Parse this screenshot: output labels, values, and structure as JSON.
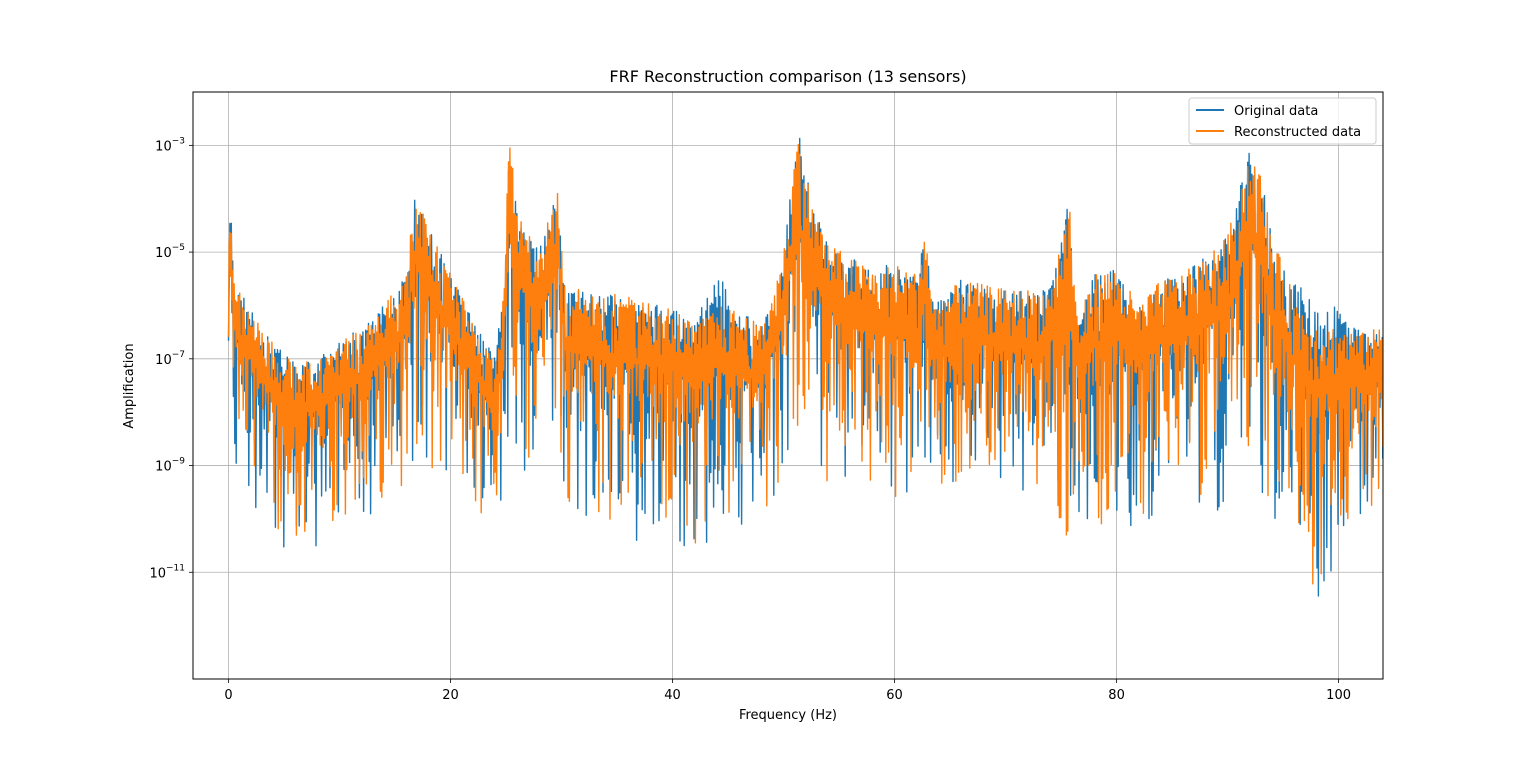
{
  "chart_data": {
    "type": "line",
    "title": "FRF Reconstruction comparison (13 sensors)",
    "xlabel": "Frequency (Hz)",
    "ylabel": "Amplification",
    "xlim": [
      -3.2,
      104
    ],
    "ylim": [
      1e-13,
      0.01
    ],
    "y_scale": "log",
    "grid": true,
    "legend_position": "top-right",
    "x_ticks": [
      0,
      20,
      40,
      60,
      80,
      100
    ],
    "x_tick_labels": [
      "0",
      "20",
      "40",
      "60",
      "80",
      "100"
    ],
    "y_ticks": [
      1e-11,
      1e-09,
      1e-07,
      1e-05,
      0.001
    ],
    "y_tick_labels": [
      {
        "base": "10",
        "exp": "−11"
      },
      {
        "base": "10",
        "exp": "−9"
      },
      {
        "base": "10",
        "exp": "−7"
      },
      {
        "base": "10",
        "exp": "−5"
      },
      {
        "base": "10",
        "exp": "−3"
      }
    ],
    "envelope_x": [
      0,
      0.5,
      2,
      4,
      6,
      8,
      10,
      12,
      14,
      16,
      16.8,
      18,
      20,
      22,
      24,
      24.8,
      25.3,
      26,
      28,
      29.7,
      30.3,
      32,
      36,
      40,
      42,
      44,
      46,
      48,
      50,
      51.3,
      52.5,
      54,
      56,
      58,
      60,
      62,
      62.8,
      63.5,
      66,
      70,
      74,
      75.8,
      76.5,
      78,
      80,
      82,
      84,
      86,
      88,
      90,
      92,
      93,
      94,
      96,
      98,
      100,
      102,
      104
    ],
    "series": [
      {
        "name": "Original data",
        "color": "#1f77b4",
        "upper": [
          0.0006,
          3e-06,
          8e-07,
          2e-07,
          8e-08,
          1e-07,
          2e-07,
          4e-07,
          1e-06,
          4e-06,
          0.00015,
          3e-05,
          4e-06,
          6e-07,
          1e-07,
          3e-06,
          0.0018,
          5e-05,
          1e-05,
          0.00045,
          2e-06,
          2e-06,
          1.5e-06,
          1e-06,
          5e-07,
          4e-06,
          1e-06,
          4e-07,
          1e-05,
          0.0022,
          0.0001,
          1.5e-05,
          8e-06,
          5e-06,
          6e-06,
          4e-06,
          3e-05,
          1e-06,
          3e-06,
          2e-06,
          2e-06,
          0.00012,
          5e-07,
          4e-06,
          5e-06,
          1e-06,
          3e-06,
          4e-06,
          8e-06,
          2e-05,
          0.0008,
          0.0003,
          2e-05,
          3e-06,
          1e-06,
          1.2e-06,
          3e-07,
          3e-07
        ],
        "lower": [
          1e-08,
          1e-09,
          2e-10,
          2e-11,
          3e-11,
          2e-11,
          8e-11,
          1e-10,
          1e-10,
          3e-10,
          2e-09,
          1e-09,
          5e-10,
          2e-10,
          3e-11,
          1e-10,
          5e-09,
          1e-09,
          5e-10,
          5e-10,
          2e-10,
          1e-10,
          2e-11,
          5e-11,
          2e-11,
          2e-11,
          5e-11,
          1e-10,
          2e-10,
          1e-09,
          1e-09,
          5e-10,
          5e-10,
          2e-10,
          1e-10,
          2e-10,
          5e-10,
          1e-10,
          5e-10,
          2e-10,
          5e-10,
          1e-10,
          5e-11,
          5e-11,
          1e-10,
          5e-11,
          2e-10,
          2e-10,
          2e-10,
          1e-10,
          5e-10,
          2e-10,
          5e-11,
          3e-11,
          3e-12,
          1e-11,
          5e-11,
          1e-10
        ]
      },
      {
        "name": "Reconstructed data",
        "color": "#ff7f0e",
        "upper": [
          0.0004,
          3e-06,
          8e-07,
          2e-07,
          8e-08,
          1e-07,
          2e-07,
          4e-07,
          1e-06,
          4e-06,
          0.00014,
          3e-05,
          4e-06,
          6e-07,
          1e-07,
          3e-06,
          0.0017,
          5e-05,
          1e-05,
          0.0002,
          2e-06,
          2e-06,
          1.5e-06,
          1e-06,
          4e-07,
          1e-06,
          8e-07,
          4e-07,
          1e-05,
          0.0021,
          0.0001,
          1.5e-05,
          8e-06,
          5e-06,
          6e-06,
          4e-06,
          3e-05,
          1e-06,
          3e-06,
          2e-06,
          2e-06,
          0.00011,
          5e-07,
          4e-06,
          5e-06,
          1e-06,
          3e-06,
          4e-06,
          8e-06,
          2e-05,
          0.0009,
          0.0003,
          2e-05,
          1.5e-06,
          5e-07,
          4e-07,
          3e-07,
          4e-07
        ],
        "lower": [
          2e-08,
          2e-09,
          5e-10,
          5e-11,
          3e-11,
          5e-11,
          1e-10,
          1e-10,
          2e-10,
          5e-10,
          3e-09,
          1e-09,
          5e-10,
          3e-10,
          1e-11,
          2e-10,
          5e-09,
          2e-09,
          8e-10,
          5e-10,
          2e-10,
          1e-10,
          5e-11,
          1e-10,
          3e-11,
          1e-10,
          5e-11,
          1e-10,
          3e-10,
          2e-09,
          1e-09,
          5e-10,
          5e-10,
          2e-10,
          1e-10,
          2e-10,
          8e-10,
          2e-10,
          5e-10,
          2e-10,
          5e-10,
          1e-11,
          1e-10,
          5e-11,
          1e-10,
          1e-10,
          2e-10,
          2e-10,
          2e-10,
          1e-10,
          1e-09,
          3e-10,
          1e-10,
          5e-11,
          4e-12,
          5e-11,
          1e-10,
          2e-10
        ]
      }
    ]
  }
}
